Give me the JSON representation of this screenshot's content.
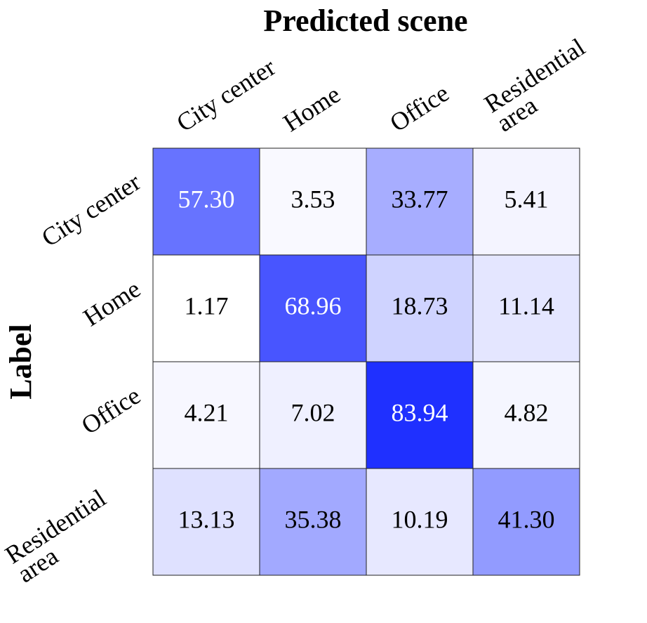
{
  "chart_data": {
    "type": "heatmap",
    "title": "Predicted scene",
    "y_label": "Label",
    "x_categories": [
      "City center",
      "Home",
      "Office",
      "Residential area"
    ],
    "y_categories": [
      "City center",
      "Home",
      "Office",
      "Residential area"
    ],
    "values": [
      [
        57.3,
        3.53,
        33.77,
        5.41
      ],
      [
        1.17,
        68.96,
        18.73,
        11.14
      ],
      [
        4.21,
        7.02,
        83.94,
        4.82
      ],
      [
        13.13,
        35.38,
        10.19,
        41.3
      ]
    ],
    "value_labels": [
      [
        "57.30",
        "3.53",
        "33.77",
        "5.41"
      ],
      [
        "1.17",
        "68.96",
        "18.73",
        "11.14"
      ],
      [
        "4.21",
        "7.02",
        "83.94",
        "4.82"
      ],
      [
        "13.13",
        "35.38",
        "10.19",
        "41.30"
      ]
    ],
    "low_color": "#ffffff",
    "high_color": "#1f30ff"
  }
}
